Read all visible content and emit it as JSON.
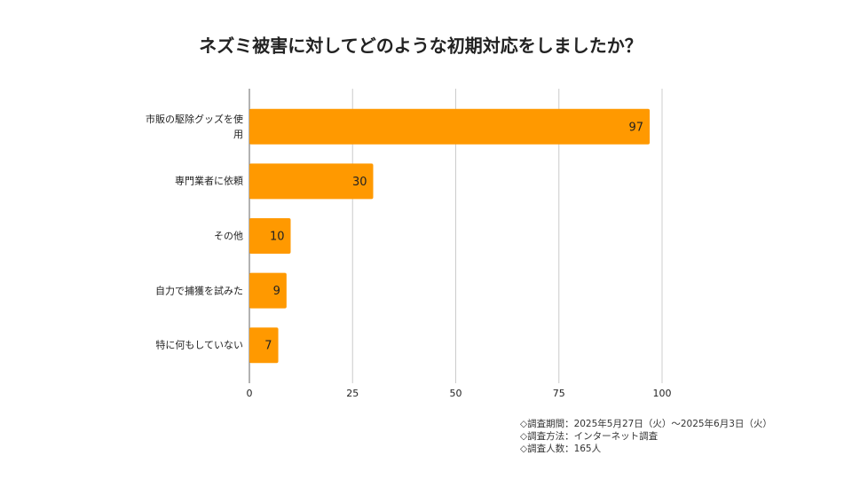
{
  "chart_data": {
    "type": "bar",
    "orientation": "horizontal",
    "title": "ネズミ被害に対してどのような初期対応をしましたか？",
    "categories": [
      "市販の駆除グッズを使用",
      "専門業者に依頼",
      "その他",
      "自力で捕獲を試みた",
      "特に何もしていない"
    ],
    "values": [
      97,
      30,
      10,
      9,
      7
    ],
    "color": "#ff9900",
    "xlim": [
      0,
      100
    ],
    "xticks": [
      0,
      25,
      50,
      75,
      100
    ],
    "grid": true,
    "notes": [
      "◇調査期間：2025年5月27日（火）～2025年6月3日（火）",
      "◇調査方法：インターネット調査",
      "◇調査人数：165人"
    ]
  }
}
